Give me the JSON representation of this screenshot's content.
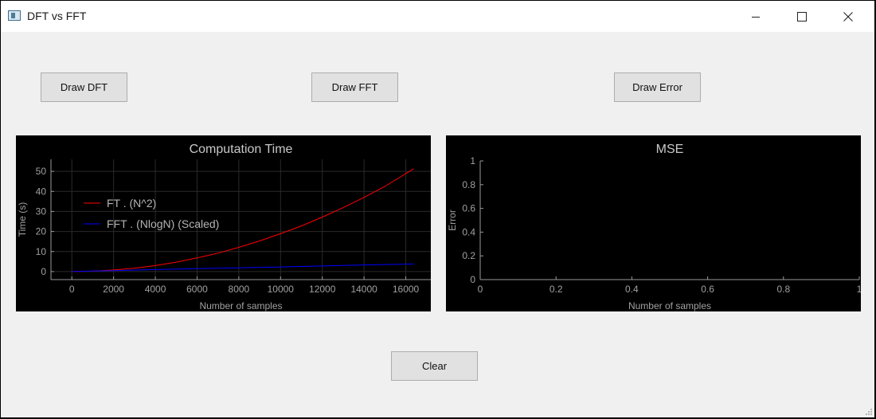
{
  "window": {
    "title": "DFT vs FFT",
    "controls": [
      "minimize",
      "maximize",
      "close"
    ]
  },
  "buttons": {
    "draw_dft": "Draw DFT",
    "draw_fft": "Draw FFT",
    "draw_error": "Draw Error",
    "clear": "Clear"
  },
  "colors": {
    "ft_series": "#ff0000",
    "fft_series": "#0000ff",
    "plot_background": "#000000",
    "axis_text": "#a0a0a0"
  },
  "chart_data": [
    {
      "type": "line",
      "title": "Computation Time",
      "xlabel": "Number of samples",
      "ylabel": "Time (s)",
      "xlim": [
        -1000,
        17200
      ],
      "ylim": [
        -4,
        56
      ],
      "xticks": [
        0,
        2000,
        4000,
        6000,
        8000,
        10000,
        12000,
        14000,
        16000
      ],
      "yticks": [
        0,
        10,
        20,
        30,
        40,
        50
      ],
      "grid": true,
      "legend": "top-left",
      "series": [
        {
          "name": "FT . (N^2)",
          "color": "#ff0000",
          "x": [
            0,
            1000,
            2000,
            3000,
            4000,
            5000,
            6000,
            7000,
            8000,
            9000,
            10000,
            11000,
            12000,
            13000,
            14000,
            15000,
            16384
          ],
          "y": [
            0,
            0.2,
            0.8,
            1.7,
            3.0,
            4.7,
            6.8,
            9.2,
            12.1,
            15.3,
            18.9,
            22.8,
            27.2,
            31.9,
            37.0,
            42.5,
            51.3
          ]
        },
        {
          "name": "FFT . (NlogN) (Scaled)",
          "color": "#0000ff",
          "x": [
            0,
            2000,
            4000,
            6000,
            8000,
            10000,
            12000,
            14000,
            16384
          ],
          "y": [
            0,
            0.5,
            1.0,
            1.5,
            1.9,
            2.3,
            2.8,
            3.3,
            3.8
          ]
        }
      ]
    },
    {
      "type": "line",
      "title": "MSE",
      "xlabel": "Number of samples",
      "ylabel": "Error",
      "xlim": [
        0,
        1
      ],
      "ylim": [
        0,
        1
      ],
      "xticks": [
        0,
        0.2,
        0.4,
        0.6,
        0.8,
        1
      ],
      "yticks": [
        0,
        0.2,
        0.4,
        0.6,
        0.8,
        1
      ],
      "grid": false,
      "series": []
    }
  ]
}
